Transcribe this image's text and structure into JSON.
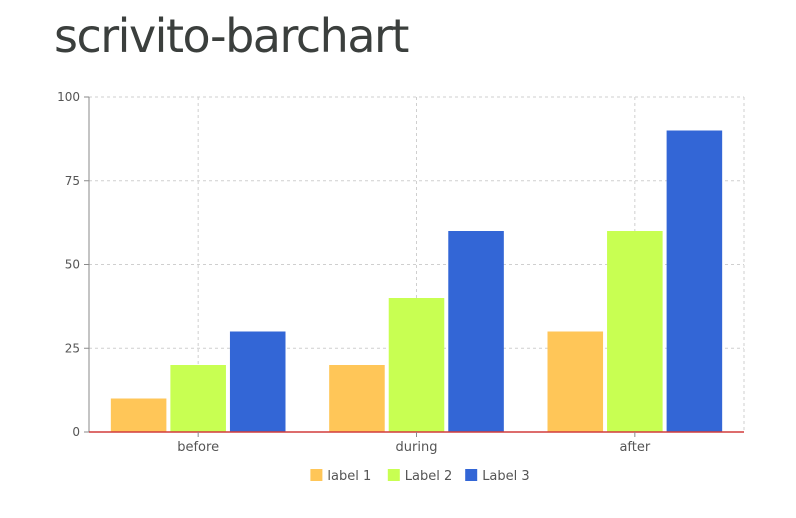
{
  "page": {
    "title": "scrivito-barchart"
  },
  "chart_data": {
    "type": "bar",
    "title": "",
    "xlabel": "",
    "ylabel": "",
    "categories": [
      "before",
      "during",
      "after"
    ],
    "series": [
      {
        "name": "label 1",
        "color": "#ffc658",
        "values": [
          10,
          20,
          30
        ]
      },
      {
        "name": "Label 2",
        "color": "#c8ff52",
        "values": [
          20,
          40,
          60
        ]
      },
      {
        "name": "Label 3",
        "color": "#3366d6",
        "values": [
          30,
          60,
          90
        ]
      }
    ],
    "ylim": [
      0,
      100
    ],
    "yticks": [
      0,
      25,
      50,
      75,
      100
    ],
    "grid": true,
    "legend_position": "bottom",
    "baseline_color": "#d23c3c"
  }
}
